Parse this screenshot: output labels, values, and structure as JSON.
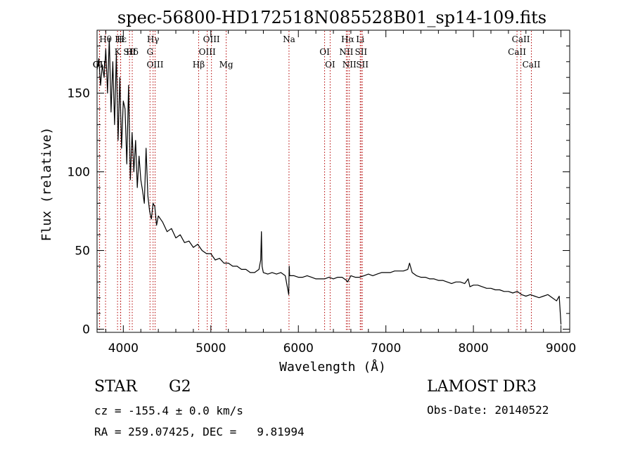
{
  "chart_data": {
    "type": "line",
    "title": "spec-56800-HD172518N085528B01_sp14-109.fits",
    "xlabel": "Wavelength (Å)",
    "ylabel": "Flux (relative)",
    "xlim": [
      3700,
      9100
    ],
    "ylim": [
      -2,
      190
    ],
    "xticks": [
      4000,
      5000,
      6000,
      7000,
      8000,
      9000
    ],
    "yticks": [
      0,
      50,
      100,
      150
    ],
    "grid": false,
    "series": [
      {
        "name": "flux",
        "x": [
          3700,
          3720,
          3740,
          3760,
          3780,
          3800,
          3820,
          3840,
          3860,
          3880,
          3900,
          3920,
          3940,
          3960,
          3980,
          4000,
          4020,
          4040,
          4060,
          4080,
          4100,
          4120,
          4140,
          4160,
          4180,
          4200,
          4220,
          4240,
          4260,
          4280,
          4300,
          4320,
          4340,
          4360,
          4380,
          4400,
          4450,
          4500,
          4550,
          4600,
          4650,
          4700,
          4750,
          4800,
          4850,
          4900,
          4950,
          5000,
          5050,
          5100,
          5150,
          5200,
          5250,
          5300,
          5350,
          5400,
          5450,
          5500,
          5550,
          5570,
          5578,
          5585,
          5600,
          5650,
          5700,
          5750,
          5800,
          5850,
          5890,
          5895,
          5900,
          5950,
          6000,
          6050,
          6100,
          6150,
          6200,
          6250,
          6300,
          6350,
          6400,
          6450,
          6500,
          6550,
          6563,
          6600,
          6650,
          6700,
          6750,
          6800,
          6850,
          6900,
          6950,
          7000,
          7050,
          7100,
          7150,
          7200,
          7250,
          7270,
          7300,
          7350,
          7400,
          7450,
          7500,
          7550,
          7600,
          7650,
          7700,
          7750,
          7800,
          7850,
          7900,
          7940,
          7960,
          8000,
          8050,
          8100,
          8150,
          8200,
          8250,
          8300,
          8350,
          8400,
          8450,
          8500,
          8550,
          8600,
          8650,
          8700,
          8750,
          8800,
          8850,
          8900,
          8950,
          8980,
          9000
        ],
        "values": [
          165,
          172,
          155,
          168,
          160,
          178,
          150,
          185,
          138,
          170,
          130,
          175,
          120,
          160,
          115,
          145,
          140,
          105,
          155,
          95,
          125,
          100,
          120,
          90,
          110,
          95,
          88,
          80,
          115,
          85,
          75,
          70,
          80,
          78,
          66,
          72,
          68,
          62,
          64,
          58,
          60,
          55,
          56,
          52,
          54,
          50,
          48,
          48,
          44,
          45,
          42,
          42,
          40,
          40,
          38,
          38,
          36,
          36,
          38,
          44,
          62,
          40,
          36,
          35,
          36,
          35,
          36,
          34,
          22,
          40,
          34,
          34,
          33,
          33,
          34,
          33,
          32,
          32,
          32,
          33,
          32,
          33,
          33,
          31,
          30,
          34,
          33,
          33,
          34,
          35,
          34,
          35,
          36,
          36,
          36,
          37,
          37,
          37,
          38,
          42,
          36,
          34,
          33,
          33,
          32,
          32,
          31,
          31,
          30,
          29,
          30,
          30,
          29,
          32,
          27,
          28,
          28,
          27,
          26,
          26,
          25,
          25,
          24,
          24,
          23,
          24,
          22,
          21,
          22,
          21,
          20,
          21,
          22,
          20,
          18,
          21,
          3
        ]
      }
    ],
    "line_markers": [
      {
        "label": "Hθ",
        "x": 3797
      },
      {
        "label": "K",
        "x": 3934
      },
      {
        "label": "OII",
        "x": 3727
      },
      {
        "label": "Hε",
        "x": 3970
      },
      {
        "label": "SII",
        "x": 4071
      },
      {
        "label": "OII",
        "x": 3729
      },
      {
        "label": "H",
        "x": 3968
      },
      {
        "label": "Hδ",
        "x": 4102
      },
      {
        "label": "OIII",
        "x": 4363
      },
      {
        "label": "Hγ",
        "x": 4340
      },
      {
        "label": "G",
        "x": 4305
      },
      {
        "label": "Hβ",
        "x": 4861
      },
      {
        "label": "OIII",
        "x": 5007
      },
      {
        "label": "OIII",
        "x": 4959
      },
      {
        "label": "Mg",
        "x": 5175
      },
      {
        "label": "Na",
        "x": 5893
      },
      {
        "label": "OI",
        "x": 6300
      },
      {
        "label": "OI",
        "x": 6363
      },
      {
        "label": "Hα",
        "x": 6563
      },
      {
        "label": "SII",
        "x": 6716
      },
      {
        "label": "NII",
        "x": 6583
      },
      {
        "label": "Li",
        "x": 6707
      },
      {
        "label": "NII",
        "x": 6548
      },
      {
        "label": "SII",
        "x": 6731
      },
      {
        "label": "CaII",
        "x": 8542
      },
      {
        "label": "CaII",
        "x": 8498
      },
      {
        "label": "CaII",
        "x": 8662
      }
    ]
  },
  "info": {
    "object_class": "STAR",
    "subclass": "G2",
    "survey": "LAMOST DR3",
    "redshift_text": "cz = -155.4 ± 0.0 km/s",
    "obs_date_text": "Obs-Date: 20140522",
    "coords_text": "RA = 259.07425, DEC =   9.81994"
  },
  "colors": {
    "line_marker": "#b30000",
    "spectrum": "#000000",
    "axis": "#000000"
  }
}
